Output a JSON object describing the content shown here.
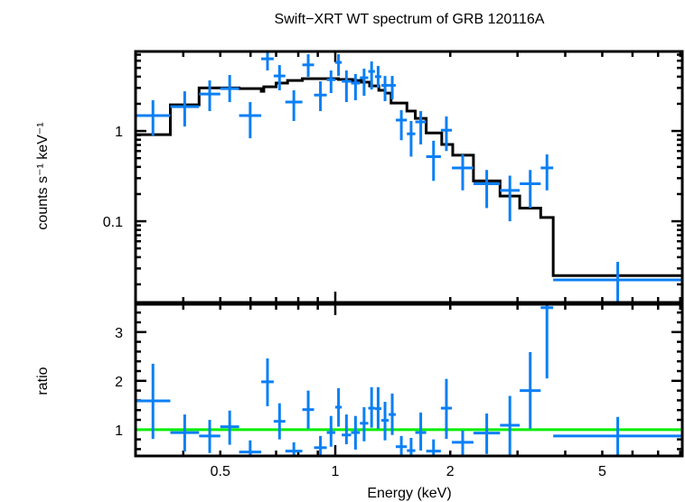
{
  "chart_data": [
    {
      "type": "scatter",
      "panel": "spectrum",
      "title": "Swift−XRT WT spectrum of GRB 120116A",
      "xlabel": "Energy (keV)",
      "ylabel": "counts s⁻¹ keV⁻¹",
      "xscale": "log",
      "yscale": "log",
      "xlim": [
        0.3,
        8.1
      ],
      "ylim": [
        0.0126,
        7.6
      ],
      "ytick_labels": [
        {
          "value": 1,
          "label": "1"
        },
        {
          "value": 0.1,
          "label": "0.1"
        }
      ],
      "colors": {
        "data": "#0a7ff5",
        "model": "#000000"
      },
      "series": [
        {
          "name": "data",
          "style": "errorbar-cross",
          "points": [
            {
              "xlo": 0.3,
              "xhi": 0.37,
              "y": 1.48,
              "ylo": 0.89,
              "yhi": 2.19
            },
            {
              "xlo": 0.37,
              "xhi": 0.44,
              "y": 1.86,
              "ylo": 1.12,
              "yhi": 2.75
            },
            {
              "xlo": 0.44,
              "xhi": 0.5,
              "y": 2.57,
              "ylo": 1.66,
              "yhi": 3.63
            },
            {
              "xlo": 0.5,
              "xhi": 0.56,
              "y": 2.95,
              "ylo": 2.09,
              "yhi": 4.17
            },
            {
              "xlo": 0.56,
              "xhi": 0.64,
              "y": 1.48,
              "ylo": 0.83,
              "yhi": 2.09
            },
            {
              "xlo": 0.64,
              "xhi": 0.69,
              "y": 6.3,
              "ylo": 4.68,
              "yhi": 7.6
            },
            {
              "xlo": 0.69,
              "xhi": 0.74,
              "y": 4.07,
              "ylo": 2.82,
              "yhi": 5.37
            },
            {
              "xlo": 0.74,
              "xhi": 0.82,
              "y": 2.09,
              "ylo": 1.29,
              "yhi": 2.82
            },
            {
              "xlo": 0.82,
              "xhi": 0.88,
              "y": 5.4,
              "ylo": 3.98,
              "yhi": 7.08
            },
            {
              "xlo": 0.88,
              "xhi": 0.95,
              "y": 2.5,
              "ylo": 1.66,
              "yhi": 3.55
            },
            {
              "xlo": 0.95,
              "xhi": 1.0,
              "y": 3.7,
              "ylo": 2.63,
              "yhi": 4.68
            },
            {
              "xlo": 1.0,
              "xhi": 1.04,
              "y": 5.75,
              "ylo": 4.07,
              "yhi": 7.08
            },
            {
              "xlo": 1.04,
              "xhi": 1.1,
              "y": 3.55,
              "ylo": 2.09,
              "yhi": 4.68
            },
            {
              "xlo": 1.1,
              "xhi": 1.16,
              "y": 3.39,
              "ylo": 2.19,
              "yhi": 4.27
            },
            {
              "xlo": 1.16,
              "xhi": 1.22,
              "y": 3.89,
              "ylo": 2.45,
              "yhi": 4.9
            },
            {
              "xlo": 1.22,
              "xhi": 1.27,
              "y": 4.57,
              "ylo": 2.88,
              "yhi": 5.89
            },
            {
              "xlo": 1.27,
              "xhi": 1.32,
              "y": 4.0,
              "ylo": 3.02,
              "yhi": 5.25
            },
            {
              "xlo": 1.32,
              "xhi": 1.38,
              "y": 3.2,
              "ylo": 2.14,
              "yhi": 4.07
            },
            {
              "xlo": 1.38,
              "xhi": 1.44,
              "y": 3.2,
              "ylo": 2.24,
              "yhi": 4.07
            },
            {
              "xlo": 1.44,
              "xhi": 1.54,
              "y": 1.32,
              "ylo": 0.79,
              "yhi": 1.7
            },
            {
              "xlo": 1.54,
              "xhi": 1.62,
              "y": 0.93,
              "ylo": 0.52,
              "yhi": 1.29
            },
            {
              "xlo": 1.62,
              "xhi": 1.73,
              "y": 1.26,
              "ylo": 0.71,
              "yhi": 1.66
            },
            {
              "xlo": 1.73,
              "xhi": 1.89,
              "y": 0.52,
              "ylo": 0.28,
              "yhi": 0.78
            },
            {
              "xlo": 1.89,
              "xhi": 2.02,
              "y": 1.02,
              "ylo": 0.6,
              "yhi": 1.45
            },
            {
              "xlo": 2.02,
              "xhi": 2.3,
              "y": 0.39,
              "ylo": 0.22,
              "yhi": 0.55
            },
            {
              "xlo": 2.3,
              "xhi": 2.7,
              "y": 0.26,
              "ylo": 0.14,
              "yhi": 0.37
            },
            {
              "xlo": 2.7,
              "xhi": 3.04,
              "y": 0.22,
              "ylo": 0.1,
              "yhi": 0.32
            },
            {
              "xlo": 3.04,
              "xhi": 3.45,
              "y": 0.26,
              "ylo": 0.14,
              "yhi": 0.37
            },
            {
              "xlo": 3.45,
              "xhi": 3.72,
              "y": 0.39,
              "ylo": 0.22,
              "yhi": 0.55
            },
            {
              "xlo": 3.72,
              "xhi": 8.1,
              "y": 0.0224,
              "ylo": 0.0126,
              "yhi": 0.0355
            }
          ]
        },
        {
          "name": "model",
          "style": "step",
          "steps": [
            {
              "xlo": 0.3,
              "xhi": 0.37,
              "y": 0.91
            },
            {
              "xlo": 0.37,
              "xhi": 0.44,
              "y": 1.95
            },
            {
              "xlo": 0.44,
              "xhi": 0.56,
              "y": 3.0
            },
            {
              "xlo": 0.56,
              "xhi": 0.64,
              "y": 2.95
            },
            {
              "xlo": 0.64,
              "xhi": 0.65,
              "y": 2.75
            },
            {
              "xlo": 0.65,
              "xhi": 0.7,
              "y": 3.09
            },
            {
              "xlo": 0.7,
              "xhi": 0.75,
              "y": 3.39
            },
            {
              "xlo": 0.75,
              "xhi": 0.82,
              "y": 3.63
            },
            {
              "xlo": 0.82,
              "xhi": 0.92,
              "y": 3.8
            },
            {
              "xlo": 0.92,
              "xhi": 1.02,
              "y": 3.8
            },
            {
              "xlo": 1.02,
              "xhi": 1.11,
              "y": 3.72
            },
            {
              "xlo": 1.11,
              "xhi": 1.17,
              "y": 3.63
            },
            {
              "xlo": 1.17,
              "xhi": 1.23,
              "y": 3.47
            },
            {
              "xlo": 1.23,
              "xhi": 1.3,
              "y": 3.16
            },
            {
              "xlo": 1.3,
              "xhi": 1.35,
              "y": 2.82
            },
            {
              "xlo": 1.35,
              "xhi": 1.4,
              "y": 2.63
            },
            {
              "xlo": 1.4,
              "xhi": 1.54,
              "y": 2.04
            },
            {
              "xlo": 1.54,
              "xhi": 1.62,
              "y": 1.66
            },
            {
              "xlo": 1.62,
              "xhi": 1.73,
              "y": 1.38
            },
            {
              "xlo": 1.73,
              "xhi": 1.9,
              "y": 0.95
            },
            {
              "xlo": 1.9,
              "xhi": 2.03,
              "y": 0.71
            },
            {
              "xlo": 2.03,
              "xhi": 2.3,
              "y": 0.54
            },
            {
              "xlo": 2.3,
              "xhi": 2.7,
              "y": 0.28
            },
            {
              "xlo": 2.7,
              "xhi": 3.04,
              "y": 0.19
            },
            {
              "xlo": 3.04,
              "xhi": 3.45,
              "y": 0.14
            },
            {
              "xlo": 3.45,
              "xhi": 3.72,
              "y": 0.11
            },
            {
              "xlo": 3.72,
              "xhi": 8.1,
              "y": 0.025
            }
          ]
        }
      ]
    },
    {
      "type": "scatter",
      "panel": "ratio",
      "xlabel": "Energy (keV)",
      "ylabel": "ratio",
      "xscale": "log",
      "yscale": "linear",
      "xlim": [
        0.3,
        8.1
      ],
      "ylim": [
        0.46,
        3.57
      ],
      "xtick_labels": [
        {
          "value": 0.5,
          "label": "0.5"
        },
        {
          "value": 1,
          "label": "1"
        },
        {
          "value": 2,
          "label": "2"
        },
        {
          "value": 5,
          "label": "5"
        }
      ],
      "ytick_labels": [
        {
          "value": 1,
          "label": "1"
        },
        {
          "value": 2,
          "label": "2"
        },
        {
          "value": 3,
          "label": "3"
        }
      ],
      "reference_line": {
        "y": 1,
        "color": "#00ee00"
      },
      "colors": {
        "data": "#0a7ff5"
      },
      "series": [
        {
          "name": "ratio",
          "style": "errorbar-cross",
          "points": [
            {
              "xlo": 0.3,
              "xhi": 0.37,
              "y": 1.59,
              "ylo": 0.81,
              "yhi": 2.35
            },
            {
              "xlo": 0.37,
              "xhi": 0.44,
              "y": 0.94,
              "ylo": 0.55,
              "yhi": 1.31
            },
            {
              "xlo": 0.44,
              "xhi": 0.5,
              "y": 0.87,
              "ylo": 0.52,
              "yhi": 1.2
            },
            {
              "xlo": 0.5,
              "xhi": 0.56,
              "y": 1.06,
              "ylo": 0.69,
              "yhi": 1.39
            },
            {
              "xlo": 0.56,
              "xhi": 0.64,
              "y": 0.54,
              "ylo": 0.46,
              "yhi": 0.78
            },
            {
              "xlo": 0.64,
              "xhi": 0.69,
              "y": 1.98,
              "ylo": 1.48,
              "yhi": 2.46
            },
            {
              "xlo": 0.69,
              "xhi": 0.74,
              "y": 1.17,
              "ylo": 0.8,
              "yhi": 1.54
            },
            {
              "xlo": 0.74,
              "xhi": 0.82,
              "y": 0.56,
              "ylo": 0.46,
              "yhi": 0.74
            },
            {
              "xlo": 0.82,
              "xhi": 0.88,
              "y": 1.41,
              "ylo": 1.02,
              "yhi": 1.8
            },
            {
              "xlo": 0.88,
              "xhi": 0.95,
              "y": 0.63,
              "ylo": 0.46,
              "yhi": 0.87
            },
            {
              "xlo": 0.95,
              "xhi": 1.0,
              "y": 0.94,
              "ylo": 0.65,
              "yhi": 1.28
            },
            {
              "xlo": 1.0,
              "xhi": 1.04,
              "y": 1.46,
              "ylo": 1.06,
              "yhi": 1.85
            },
            {
              "xlo": 1.04,
              "xhi": 1.1,
              "y": 0.89,
              "ylo": 0.7,
              "yhi": 1.31
            },
            {
              "xlo": 1.1,
              "xhi": 1.16,
              "y": 0.94,
              "ylo": 0.59,
              "yhi": 1.28
            },
            {
              "xlo": 1.16,
              "xhi": 1.22,
              "y": 1.13,
              "ylo": 0.76,
              "yhi": 1.46
            },
            {
              "xlo": 1.22,
              "xhi": 1.27,
              "y": 1.44,
              "ylo": 1.04,
              "yhi": 1.87
            },
            {
              "xlo": 1.27,
              "xhi": 1.32,
              "y": 1.43,
              "ylo": 1.02,
              "yhi": 1.87
            },
            {
              "xlo": 1.32,
              "xhi": 1.38,
              "y": 1.19,
              "ylo": 0.78,
              "yhi": 1.57
            },
            {
              "xlo": 1.38,
              "xhi": 1.44,
              "y": 1.31,
              "ylo": 0.89,
              "yhi": 1.74
            },
            {
              "xlo": 1.44,
              "xhi": 1.54,
              "y": 0.65,
              "ylo": 0.46,
              "yhi": 0.87
            },
            {
              "xlo": 1.54,
              "xhi": 1.62,
              "y": 0.57,
              "ylo": 0.46,
              "yhi": 0.83
            },
            {
              "xlo": 1.62,
              "xhi": 1.73,
              "y": 0.94,
              "ylo": 0.57,
              "yhi": 1.35
            },
            {
              "xlo": 1.73,
              "xhi": 1.89,
              "y": 0.56,
              "ylo": 0.46,
              "yhi": 0.8
            },
            {
              "xlo": 1.89,
              "xhi": 2.02,
              "y": 1.44,
              "ylo": 0.81,
              "yhi": 2.04
            },
            {
              "xlo": 2.02,
              "xhi": 2.3,
              "y": 0.74,
              "ylo": 0.46,
              "yhi": 0.98
            },
            {
              "xlo": 2.3,
              "xhi": 2.7,
              "y": 0.93,
              "ylo": 0.5,
              "yhi": 1.33
            },
            {
              "xlo": 2.7,
              "xhi": 3.04,
              "y": 1.09,
              "ylo": 0.46,
              "yhi": 1.69
            },
            {
              "xlo": 3.04,
              "xhi": 3.45,
              "y": 1.8,
              "ylo": 1.02,
              "yhi": 2.59
            },
            {
              "xlo": 3.45,
              "xhi": 3.72,
              "y": 3.5,
              "ylo": 2.05,
              "yhi": 3.57
            },
            {
              "xlo": 3.72,
              "xhi": 8.1,
              "y": 0.87,
              "ylo": 0.46,
              "yhi": 1.26
            }
          ]
        }
      ]
    }
  ]
}
